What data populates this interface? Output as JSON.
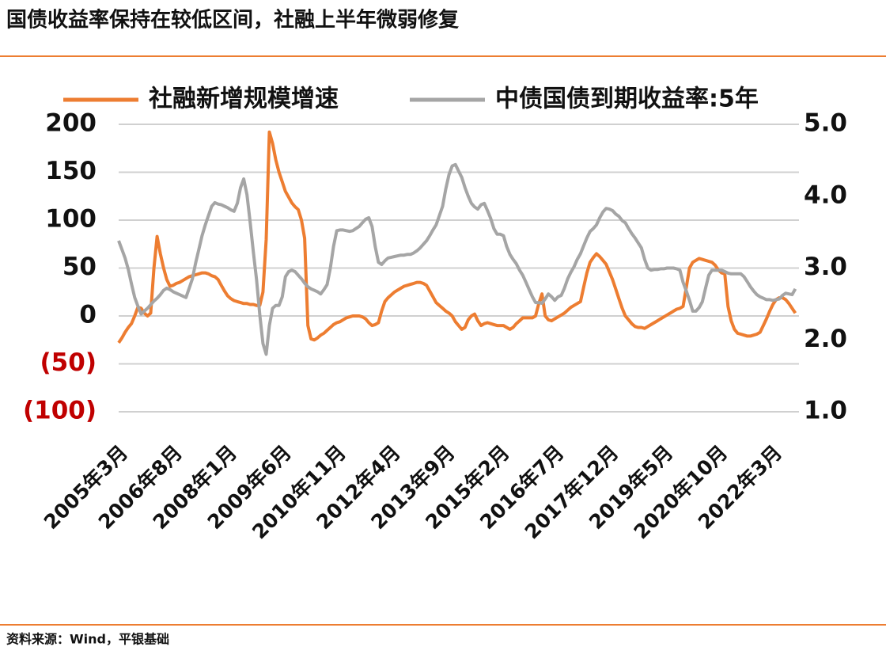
{
  "chart_data": {
    "type": "line",
    "title": "国债收益率保持在较低区间，社融上半年微弱修复",
    "source": "资料来源：Wind，平银基础",
    "categories": [
      "2005年3月",
      null,
      null,
      null,
      null,
      null,
      null,
      null,
      null,
      null,
      null,
      null,
      null,
      null,
      null,
      null,
      null,
      "2006年8月",
      null,
      null,
      null,
      null,
      null,
      null,
      null,
      null,
      null,
      null,
      null,
      null,
      null,
      null,
      null,
      null,
      "2008年1月",
      null,
      null,
      null,
      null,
      null,
      null,
      null,
      null,
      null,
      null,
      null,
      null,
      null,
      null,
      null,
      null,
      "2009年6月",
      null,
      null,
      null,
      null,
      null,
      null,
      null,
      null,
      null,
      null,
      null,
      null,
      null,
      null,
      null,
      null,
      "2010年11月",
      null,
      null,
      null,
      null,
      null,
      null,
      null,
      null,
      null,
      null,
      null,
      null,
      null,
      null,
      null,
      null,
      "2012年4月",
      null,
      null,
      null,
      null,
      null,
      null,
      null,
      null,
      null,
      null,
      null,
      null,
      null,
      null,
      null,
      null,
      "2013年9月",
      null,
      null,
      null,
      null,
      null,
      null,
      null,
      null,
      null,
      null,
      null,
      null,
      null,
      null,
      null,
      null,
      "2015年2月",
      null,
      null,
      null,
      null,
      null,
      null,
      null,
      null,
      null,
      null,
      null,
      null,
      null,
      null,
      null,
      null,
      "2016年7月",
      null,
      null,
      null,
      null,
      null,
      null,
      null,
      null,
      null,
      null,
      null,
      null,
      null,
      null,
      null,
      null,
      "2017年12月",
      null,
      null,
      null,
      null,
      null,
      null,
      null,
      null,
      null,
      null,
      null,
      null,
      null,
      null,
      null,
      null,
      "2019年5月",
      null,
      null,
      null,
      null,
      null,
      null,
      null,
      null,
      null,
      null,
      null,
      null,
      null,
      null,
      null,
      null,
      "2020年10月",
      null,
      null,
      null,
      null,
      null,
      null,
      null,
      null,
      null,
      null,
      null,
      null,
      null,
      null,
      null,
      null,
      "2022年3月",
      null,
      null,
      null,
      null,
      null,
      null,
      null
    ],
    "series": [
      {
        "name": "社融新增规模增速",
        "color": "#ED7D31",
        "axis": "y",
        "values": [
          -28,
          -23,
          -17,
          -12,
          -8,
          0,
          9,
          8,
          3,
          0,
          3,
          50,
          83,
          65,
          50,
          38,
          31,
          32,
          34,
          35,
          37,
          39,
          41,
          42,
          43,
          44,
          45,
          45,
          44,
          42,
          41,
          38,
          32,
          26,
          21,
          18,
          16,
          15,
          14,
          13,
          13,
          12,
          12,
          11,
          11,
          25,
          80,
          192,
          180,
          163,
          150,
          140,
          130,
          124,
          118,
          114,
          111,
          100,
          81,
          -10,
          -24,
          -25,
          -23,
          -20,
          -18,
          -15,
          -12,
          -9,
          -7,
          -6,
          -4,
          -2,
          -1,
          0,
          0,
          0,
          -1,
          -3,
          -7,
          -10,
          -9,
          -7,
          5,
          15,
          19,
          22,
          25,
          27,
          29,
          31,
          32,
          33,
          34,
          35,
          35,
          34,
          32,
          26,
          20,
          14,
          11,
          8,
          5,
          3,
          0,
          -6,
          -10,
          -14,
          -12,
          -4,
          0,
          2,
          -5,
          -10,
          -8,
          -7,
          -8,
          -9,
          -10,
          -10,
          -10,
          -12,
          -14,
          -12,
          -8,
          -5,
          -2,
          -2,
          -2,
          -2,
          0,
          13,
          23,
          0,
          -4,
          -5,
          -3,
          -1,
          1,
          3,
          6,
          9,
          11,
          13,
          15,
          30,
          45,
          56,
          61,
          65,
          62,
          58,
          54,
          46,
          38,
          28,
          18,
          8,
          0,
          -4,
          -8,
          -11,
          -12,
          -12,
          -13,
          -11,
          -9,
          -7,
          -5,
          -3,
          -1,
          1,
          3,
          5,
          7,
          8,
          10,
          30,
          50,
          56,
          58,
          60,
          59,
          58,
          57,
          56,
          53,
          48,
          45,
          44,
          10,
          -5,
          -14,
          -18,
          -19,
          -20,
          -21,
          -21,
          -20,
          -19,
          -17,
          -10,
          -3,
          5,
          12,
          17,
          19,
          19,
          17,
          13,
          8,
          3
        ]
      },
      {
        "name": "中债国债到期收益率:5年",
        "color": "#A5A5A5",
        "axis": "y2",
        "values": [
          3.38,
          3.26,
          3.14,
          2.98,
          2.78,
          2.59,
          2.47,
          2.36,
          2.4,
          2.44,
          2.49,
          2.54,
          2.58,
          2.63,
          2.69,
          2.72,
          2.7,
          2.67,
          2.65,
          2.63,
          2.61,
          2.59,
          2.72,
          2.85,
          3.07,
          3.26,
          3.45,
          3.6,
          3.73,
          3.86,
          3.91,
          3.89,
          3.88,
          3.86,
          3.84,
          3.81,
          3.79,
          3.9,
          4.12,
          4.24,
          4.02,
          3.64,
          3.22,
          2.84,
          2.35,
          1.95,
          1.8,
          2.2,
          2.44,
          2.48,
          2.48,
          2.6,
          2.88,
          2.95,
          2.97,
          2.95,
          2.9,
          2.85,
          2.79,
          2.74,
          2.71,
          2.69,
          2.67,
          2.64,
          2.7,
          2.77,
          3.0,
          3.3,
          3.52,
          3.53,
          3.53,
          3.52,
          3.51,
          3.52,
          3.55,
          3.58,
          3.63,
          3.68,
          3.7,
          3.58,
          3.3,
          3.08,
          3.05,
          3.1,
          3.14,
          3.15,
          3.16,
          3.17,
          3.18,
          3.18,
          3.19,
          3.19,
          3.21,
          3.24,
          3.28,
          3.33,
          3.38,
          3.45,
          3.53,
          3.6,
          3.73,
          3.86,
          4.1,
          4.3,
          4.42,
          4.44,
          4.35,
          4.26,
          4.12,
          4.0,
          3.9,
          3.85,
          3.82,
          3.88,
          3.9,
          3.8,
          3.69,
          3.55,
          3.47,
          3.47,
          3.45,
          3.3,
          3.19,
          3.12,
          3.06,
          2.97,
          2.9,
          2.8,
          2.7,
          2.6,
          2.52,
          2.52,
          2.51,
          2.57,
          2.64,
          2.6,
          2.55,
          2.6,
          2.62,
          2.72,
          2.85,
          2.94,
          3.02,
          3.12,
          3.2,
          3.31,
          3.42,
          3.51,
          3.55,
          3.6,
          3.7,
          3.78,
          3.83,
          3.82,
          3.8,
          3.75,
          3.72,
          3.66,
          3.63,
          3.55,
          3.48,
          3.42,
          3.35,
          3.28,
          3.12,
          3.0,
          2.97,
          2.98,
          2.98,
          2.99,
          2.99,
          3.0,
          3.0,
          3.0,
          2.99,
          2.97,
          2.8,
          2.68,
          2.55,
          2.4,
          2.4,
          2.45,
          2.53,
          2.72,
          2.9,
          2.97,
          2.97,
          2.97,
          2.97,
          2.95,
          2.93,
          2.92,
          2.92,
          2.92,
          2.92,
          2.88,
          2.81,
          2.74,
          2.68,
          2.63,
          2.6,
          2.58,
          2.56,
          2.56,
          2.55,
          2.56,
          2.57,
          2.62,
          2.65,
          2.64,
          2.63,
          2.71
        ]
      }
    ],
    "ylim": [
      -100,
      200
    ],
    "yticks": [
      200,
      150,
      100,
      50,
      0,
      {
        "value": -50,
        "label": "(50)"
      },
      {
        "value": -100,
        "label": "(100)"
      }
    ],
    "y2lim": [
      1,
      5
    ],
    "y2ticks": [
      {
        "value": 5,
        "label": "5.0"
      },
      {
        "value": 4,
        "label": "4.0"
      },
      {
        "value": 3,
        "label": "3.0"
      },
      {
        "value": 2,
        "label": "2.0"
      },
      {
        "value": 1,
        "label": "1.0"
      }
    ],
    "grid": true,
    "negative_tick_color": "#C00000"
  }
}
